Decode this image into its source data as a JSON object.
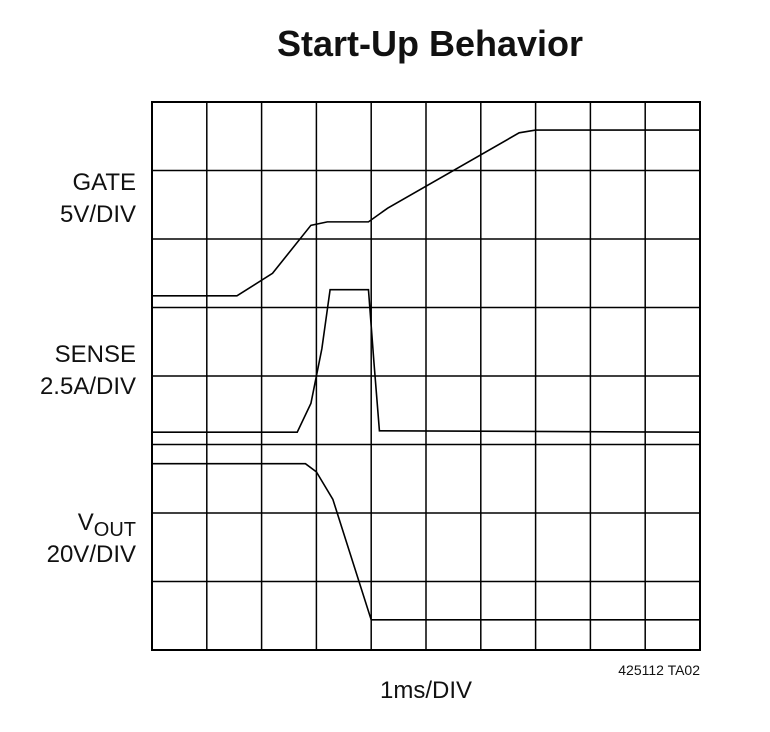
{
  "chart_data": {
    "type": "line",
    "title": "Start-Up Behavior",
    "x_label": "1ms/DIV",
    "note": "425112 TA02",
    "xlim": [
      0,
      10
    ],
    "ylim": [
      0,
      8
    ],
    "xticks": [
      0,
      1,
      2,
      3,
      4,
      5,
      6,
      7,
      8,
      9,
      10
    ],
    "yticks": [
      0,
      1,
      2,
      3,
      4,
      5,
      6,
      7,
      8
    ],
    "grid": true,
    "series": [
      {
        "name": "GATE",
        "scale": "5V/DIV",
        "color": "#000000",
        "x": [
          0,
          1.55,
          2.2,
          2.9,
          3.2,
          3.95,
          4.3,
          6.7,
          7.0,
          10
        ],
        "values": [
          5.17,
          5.17,
          5.5,
          6.2,
          6.25,
          6.25,
          6.45,
          7.55,
          7.59,
          7.59
        ]
      },
      {
        "name": "SENSE",
        "scale": "2.5A/DIV",
        "color": "#000000",
        "x": [
          0,
          2.65,
          2.9,
          3.1,
          3.25,
          3.95,
          4.05,
          4.15,
          10
        ],
        "values": [
          3.18,
          3.18,
          3.6,
          4.4,
          5.26,
          5.26,
          4.2,
          3.2,
          3.18
        ]
      },
      {
        "name": "V",
        "name_subscript": "OUT",
        "scale": "20V/DIV",
        "color": "#000000",
        "x": [
          0,
          2.8,
          3.0,
          3.3,
          4.0,
          10
        ],
        "values": [
          2.72,
          2.72,
          2.6,
          2.2,
          0.44,
          0.44
        ]
      }
    ]
  }
}
